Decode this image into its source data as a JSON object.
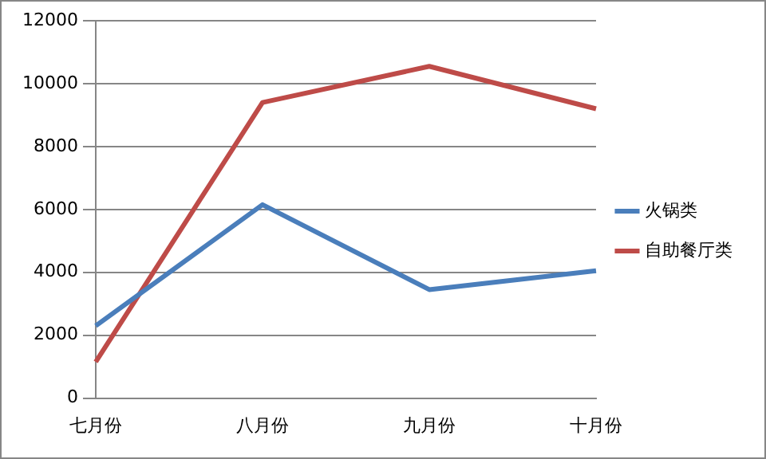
{
  "chart_data": {
    "type": "line",
    "categories": [
      "七月份",
      "八月份",
      "九月份",
      "十月份"
    ],
    "series": [
      {
        "name": "火锅类",
        "color": "#4a7ebb",
        "values": [
          2300,
          6150,
          3450,
          4050
        ]
      },
      {
        "name": "自助餐厅类",
        "color": "#be4b48",
        "values": [
          1150,
          9400,
          10550,
          9200
        ]
      }
    ],
    "ylim": [
      0,
      12000
    ],
    "yticks": [
      0,
      2000,
      4000,
      6000,
      8000,
      10000,
      12000
    ],
    "grid": "y",
    "legend": "right",
    "marker": "none"
  }
}
